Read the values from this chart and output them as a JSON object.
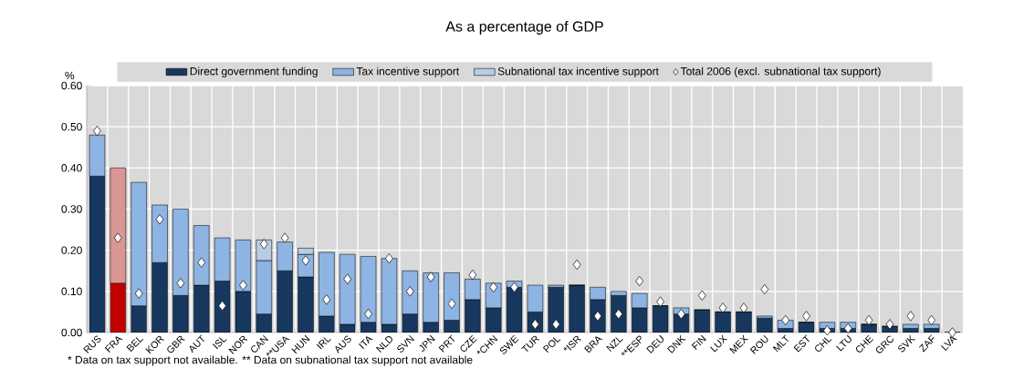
{
  "chart_data": {
    "type": "bar",
    "stacked": true,
    "title": "As a percentage of GDP",
    "ylabel": "%",
    "categories": [
      "RUS",
      "FRA",
      "BEL",
      "KOR",
      "GBR",
      "AUT",
      "ISL",
      "NOR",
      "CAN",
      "**USA",
      "HUN",
      "IRL",
      "AUS",
      "ITA",
      "NLD",
      "SVN",
      "JPN",
      "PRT",
      "CZE",
      "*CHN",
      "SWE",
      "TUR",
      "POL",
      "*ISR",
      "BRA",
      "NZL",
      "**ESP",
      "DEU",
      "DNK",
      "FIN",
      "LUX",
      "MEX",
      "ROU",
      "MLT",
      "EST",
      "CHL",
      "LTU",
      "CHE",
      "GRC",
      "SVK",
      "ZAF",
      "LVA"
    ],
    "series": [
      {
        "name": "Direct government funding",
        "colors": [
          "#17375e",
          "#c00000",
          "#17375e",
          "#17375e",
          "#17375e",
          "#17375e",
          "#17375e",
          "#17375e",
          "#17375e",
          "#17375e",
          "#17375e",
          "#17375e",
          "#17375e",
          "#17375e",
          "#17375e",
          "#17375e",
          "#17375e",
          "#17375e",
          "#17375e",
          "#17375e",
          "#17375e",
          "#17375e",
          "#17375e",
          "#17375e",
          "#17375e",
          "#17375e",
          "#17375e",
          "#17375e",
          "#17375e",
          "#17375e",
          "#17375e",
          "#17375e",
          "#17375e",
          "#17375e",
          "#17375e",
          "#17375e",
          "#17375e",
          "#17375e",
          "#17375e",
          "#17375e",
          "#17375e",
          "#17375e"
        ],
        "values": [
          0.38,
          0.12,
          0.065,
          0.17,
          0.09,
          0.115,
          0.125,
          0.1,
          0.045,
          0.15,
          0.135,
          0.04,
          0.02,
          0.025,
          0.02,
          0.045,
          0.025,
          0.03,
          0.08,
          0.06,
          0.11,
          0.05,
          0.11,
          0.115,
          0.08,
          0.09,
          0.06,
          0.065,
          0.045,
          0.055,
          0.05,
          0.05,
          0.035,
          0.01,
          0.025,
          0.01,
          0.01,
          0.02,
          0.015,
          0.01,
          0.01,
          0.0
        ]
      },
      {
        "name": "Tax incentive support",
        "colors": [
          "#8db4e2",
          "#da9694",
          "#8db4e2",
          "#8db4e2",
          "#8db4e2",
          "#8db4e2",
          "#8db4e2",
          "#8db4e2",
          "#8db4e2",
          "#8db4e2",
          "#8db4e2",
          "#8db4e2",
          "#8db4e2",
          "#8db4e2",
          "#8db4e2",
          "#8db4e2",
          "#8db4e2",
          "#8db4e2",
          "#8db4e2",
          "#8db4e2",
          "#8db4e2",
          "#8db4e2",
          "#8db4e2",
          "#8db4e2",
          "#8db4e2",
          "#8db4e2",
          "#8db4e2",
          "#8db4e2",
          "#8db4e2",
          "#8db4e2",
          "#8db4e2",
          "#8db4e2",
          "#8db4e2",
          "#8db4e2",
          "#8db4e2",
          "#8db4e2",
          "#8db4e2",
          "#8db4e2",
          "#8db4e2",
          "#8db4e2",
          "#8db4e2",
          "#8db4e2"
        ],
        "values": [
          0.1,
          0.28,
          0.3,
          0.14,
          0.21,
          0.145,
          0.105,
          0.125,
          0.13,
          0.07,
          0.055,
          0.155,
          0.17,
          0.16,
          0.16,
          0.105,
          0.12,
          0.115,
          0.05,
          0.06,
          0.015,
          0.065,
          0.005,
          0.0,
          0.03,
          0.01,
          0.035,
          0.0,
          0.015,
          0.0,
          0.0,
          0.0,
          0.005,
          0.02,
          0.0,
          0.015,
          0.015,
          0.0,
          0.0,
          0.01,
          0.01,
          0.0
        ]
      },
      {
        "name": "Subnational tax incentive support",
        "color": "#b8cce4",
        "values": [
          null,
          null,
          null,
          null,
          null,
          null,
          null,
          null,
          0.05,
          null,
          0.015,
          null,
          null,
          null,
          null,
          null,
          null,
          null,
          null,
          null,
          null,
          null,
          null,
          null,
          null,
          null,
          null,
          null,
          null,
          null,
          null,
          null,
          null,
          null,
          null,
          null,
          null,
          null,
          null,
          null,
          null,
          null
        ]
      },
      {
        "name": "Total 2006 (excl. subnational tax support)",
        "type": "scatter",
        "marker": "diamond",
        "color": "#ffffff",
        "values": [
          0.49,
          0.23,
          0.095,
          0.275,
          0.12,
          0.17,
          0.065,
          0.115,
          0.215,
          0.23,
          0.175,
          0.08,
          0.13,
          0.045,
          0.18,
          0.1,
          0.135,
          0.07,
          0.14,
          0.11,
          0.11,
          0.02,
          0.02,
          0.165,
          0.04,
          0.045,
          0.125,
          0.075,
          0.045,
          0.09,
          0.06,
          0.06,
          0.105,
          0.03,
          0.04,
          0.005,
          0.01,
          0.03,
          0.02,
          0.04,
          0.03,
          0.0
        ]
      }
    ],
    "ylim": [
      0,
      0.6
    ],
    "yticks": [
      {
        "value": 0,
        "label": "0.00"
      },
      {
        "value": 0.1,
        "label": "0.10"
      },
      {
        "value": 0.2,
        "label": "0.20"
      },
      {
        "value": 0.3,
        "label": "0.30"
      },
      {
        "value": 0.4,
        "label": "0.40"
      },
      {
        "value": 0.5,
        "label": "0.50"
      },
      {
        "value": 0.6,
        "label": "0.60"
      }
    ],
    "grid": true,
    "legend": "top",
    "annotations": [
      "* Data on tax support not available. ** Data on subnational tax support not available"
    ]
  }
}
